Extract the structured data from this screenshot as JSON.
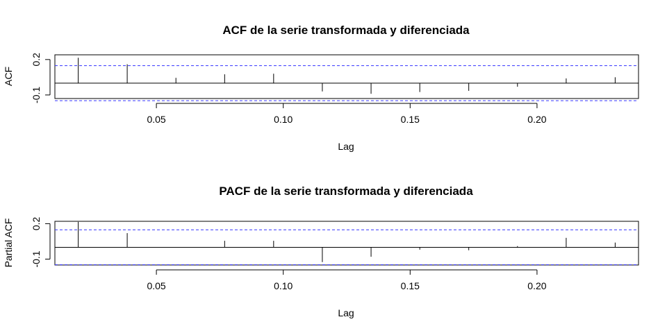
{
  "chart_data": [
    {
      "type": "bar",
      "title": "ACF de la serie transformada y diferenciada",
      "xlabel": "Lag",
      "ylabel": "ACF",
      "xlim": [
        0.01,
        0.24
      ],
      "ylim": [
        -0.13,
        0.24
      ],
      "x_ticks": [
        0.05,
        0.1,
        0.15,
        0.2
      ],
      "x_tick_labels": [
        "0.05",
        "0.10",
        "0.15",
        "0.20"
      ],
      "y_ticks": [
        -0.1,
        0.2
      ],
      "y_tick_labels": [
        "-0.1",
        "0.2"
      ],
      "confidence_bounds": [
        0.148,
        -0.148
      ],
      "zero_line": 0,
      "lags": [
        0.0192,
        0.0385,
        0.0577,
        0.0769,
        0.0962,
        0.1154,
        0.1346,
        0.1538,
        0.1731,
        0.1923,
        0.2115,
        0.2308
      ],
      "values": [
        0.215,
        0.16,
        0.045,
        0.075,
        0.08,
        -0.07,
        -0.09,
        -0.075,
        -0.065,
        -0.03,
        0.04,
        0.05
      ],
      "colors": {
        "bound": "#3333ff",
        "line": "#000000"
      }
    },
    {
      "type": "bar",
      "title": "PACF de la serie transformada y diferenciada",
      "xlabel": "Lag",
      "ylabel": "Partial ACF",
      "xlim": [
        0.01,
        0.24
      ],
      "ylim": [
        -0.15,
        0.22
      ],
      "x_ticks": [
        0.05,
        0.1,
        0.15,
        0.2
      ],
      "x_tick_labels": [
        "0.05",
        "0.10",
        "0.15",
        "0.20"
      ],
      "y_ticks": [
        -0.1,
        0.2
      ],
      "y_tick_labels": [
        "-0.1",
        "0.2"
      ],
      "confidence_bounds": [
        0.148,
        -0.148
      ],
      "zero_line": 0,
      "lags": [
        0.0192,
        0.0385,
        0.0577,
        0.0769,
        0.0962,
        0.1154,
        0.1346,
        0.1538,
        0.1731,
        0.1923,
        0.2115,
        0.2308
      ],
      "values": [
        0.215,
        0.12,
        0.0,
        0.055,
        0.055,
        -0.125,
        -0.08,
        -0.02,
        -0.025,
        0.01,
        0.08,
        0.04
      ],
      "colors": {
        "bound": "#3333ff",
        "line": "#000000"
      }
    }
  ]
}
